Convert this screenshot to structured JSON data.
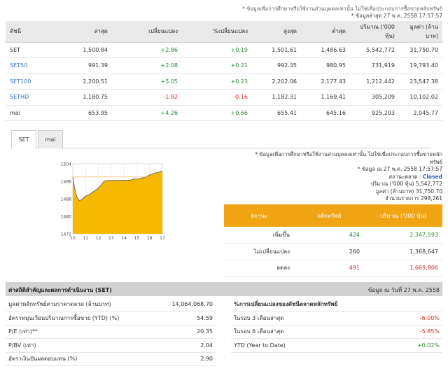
{
  "notes": {
    "disclaimer": "* ข้อมูลเพื่อการศึกษาหรือใช้งานส่วนบุคคลเท่านั้น ไม่ใช่เพื่อประกอบการซื้อขายหลักทรัพย์",
    "updated": "* ข้อมูลล่าสุด 27 พ.ค. 2558 17:57:57"
  },
  "index_table": {
    "headers": [
      "ดัชนี",
      "ล่าสุด",
      "เปลี่ยนแปลง",
      "%เปลี่ยนแปลง",
      "สูงสุด",
      "ต่ำสุด",
      "ปริมาณ ('000 หุ้น)",
      "มูลค่า (ล้านบาท)"
    ],
    "rows": [
      {
        "name": "SET",
        "last": "1,500.84",
        "chg": "+2.86",
        "pct": "+0.19",
        "high": "1,501.61",
        "low": "1,486.63",
        "vol": "5,542,772",
        "val": "31,750.70"
      },
      {
        "name": "SET50",
        "last": "991.39",
        "chg": "+2.08",
        "pct": "+0.21",
        "high": "992.35",
        "low": "980.95",
        "vol": "731,919",
        "val": "19,793.40"
      },
      {
        "name": "SET100",
        "last": "2,200.51",
        "chg": "+5.05",
        "pct": "+0.23",
        "high": "2,202.06",
        "low": "2,177.43",
        "vol": "1,212,442",
        "val": "23,547.38"
      },
      {
        "name": "SETHD",
        "last": "1,180.75",
        "chg": "-1.92",
        "pct": "-0.16",
        "high": "1,182.31",
        "low": "1,169.41",
        "vol": "305,209",
        "val": "10,102.02"
      },
      {
        "name": "mai",
        "last": "653.95",
        "chg": "+4.26",
        "pct": "+0.66",
        "high": "655.41",
        "low": "645.16",
        "vol": "925,203",
        "val": "2,045.77"
      }
    ]
  },
  "tabs": [
    "SET",
    "mai"
  ],
  "chart_data": {
    "type": "area",
    "x_ticks": [
      "10",
      "11",
      "12",
      "13",
      "14",
      "15",
      "16",
      "17"
    ],
    "y_ticks": [
      "1504",
      "1496",
      "1488",
      "1480",
      "1472"
    ],
    "y_tick_labels_display": [
      "1504",
      "1496",
      "1488",
      "1480",
      "1472"
    ],
    "ylim": [
      1472,
      1504
    ],
    "reference_line": 1497.98,
    "colors": {
      "fill": "#f7b800",
      "line": "#555555",
      "ref": "#f7a64a"
    },
    "x": [
      10.0,
      10.1,
      10.2,
      10.35,
      10.5,
      10.7,
      10.9,
      11.1,
      11.3,
      11.5,
      11.7,
      11.9,
      12.1,
      12.3,
      12.45,
      12.6,
      14.5,
      14.6,
      14.8,
      15.0,
      15.2,
      15.4,
      15.6,
      15.8,
      16.0,
      16.2,
      16.4,
      16.6,
      16.8,
      17.0
    ],
    "values": [
      1497.9,
      1494.5,
      1491.0,
      1488.5,
      1487.2,
      1487.6,
      1488.8,
      1489.5,
      1489.9,
      1490.8,
      1491.6,
      1492.4,
      1493.5,
      1495.0,
      1496.0,
      1496.3,
      1496.5,
      1496.8,
      1497.1,
      1497.0,
      1497.2,
      1497.5,
      1497.8,
      1498.3,
      1498.9,
      1499.3,
      1499.7,
      1500.0,
      1500.3,
      1500.8
    ],
    "missing": "between 12.6 and 14.5 (lunch break) series interpolated"
  },
  "info": {
    "disclaimer_1": "* ข้อมูลเพื่อการศึกษาหรือใช้งานส่วนบุคคลเท่านั้น ไม่ใช่เพื่อประกอบการซื้อขายหลัก",
    "disclaimer_2": "ทรัพย์",
    "updated": "* ข้อมูล ณ 27 พ.ค. 2558 17:57:57",
    "status_label": "สถานะตลาด :",
    "status_value": "Closed",
    "volume_label": "ปริมาณ ('000 หุ้น)",
    "volume_value": "5,542,772",
    "value_label": "มูลค่า (ล้านบาท)",
    "value_value": "31,750.70",
    "deals_label": "จำนวนรายการ",
    "deals_value": "298,261"
  },
  "breadth": {
    "headers": [
      "สถานะ",
      "หลักทรัพย์",
      "ปริมาณ ('000 หุ้น)"
    ],
    "rows": [
      {
        "label": "เพิ่มขึ้น",
        "count": "424",
        "vol": "2,347,593",
        "color": "#2a8a2a"
      },
      {
        "label": "ไม่เปลี่ยนแปลง",
        "count": "260",
        "vol": "1,368,647",
        "color": "#333333"
      },
      {
        "label": "ลดลง",
        "count": "491",
        "vol": "1,669,806",
        "color": "#d42b2b"
      }
    ]
  },
  "stats": {
    "title": "ค่าสถิติสำคัญและผลการดำเนินงาน (SET)",
    "date": "ข้อมูล ณ วันที่ 27 พ.ค. 2558",
    "left": [
      {
        "label": "มูลค่าหลักทรัพย์ตามราคาตลาด (ล้านบาท)",
        "value": "14,064,068.70"
      },
      {
        "label": "อัตราหมุนเวียนปริมาณการซื้อขาย (YTD) (%)",
        "value": "54.59"
      },
      {
        "label": "P/E (เท่า)**",
        "value": "20.35"
      },
      {
        "label": "P/BV (เท่า)",
        "value": "2.04"
      },
      {
        "label": "อัตราเงินปันผลตอบแทน (%)",
        "value": "2.90"
      }
    ],
    "right_header": "%การเปลี่ยนแปลงของดัชนีตลาดหลักทรัพย์",
    "right": [
      {
        "label": "ในรอบ 3 เดือนล่าสุด",
        "value": "-6.00%",
        "color": "#d42b2b"
      },
      {
        "label": "ในรอบ 6 เดือนล่าสุด",
        "value": "-5.85%",
        "color": "#d42b2b"
      },
      {
        "label": "YTD (Year to Date)",
        "value": "+0.02%",
        "color": "#2a8a2a"
      }
    ]
  }
}
